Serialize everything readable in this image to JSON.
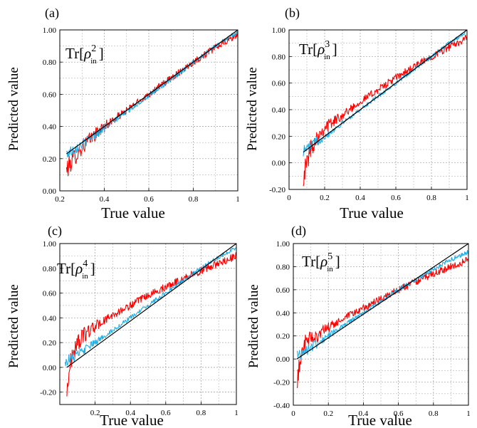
{
  "panels": [
    {
      "label": "(a)",
      "formula": {
        "prefix": "Tr",
        "rho": "ρ",
        "subscript": "in",
        "power": "2"
      },
      "chart_data": {
        "type": "line",
        "xlabel": "True value",
        "ylabel": "Predicted value",
        "xlim": [
          0.2,
          1.0
        ],
        "ylim": [
          0.0,
          1.0
        ],
        "xticks": [
          0.2,
          0.4,
          0.6,
          0.8,
          1.0
        ],
        "xtick_labels": [
          "0.2",
          "0.4",
          "0.6",
          "0.8",
          "1"
        ],
        "yticks": [
          0.0,
          0.2,
          0.4,
          0.6,
          0.8,
          1.0
        ],
        "ytick_labels": [
          "0.00",
          "0.20",
          "0.40",
          "0.60",
          "0.80",
          "1.00"
        ],
        "grid": true,
        "series": [
          {
            "color": "#ff0000",
            "x": [
              0.23,
              0.26,
              0.3,
              0.35,
              0.4,
              0.5,
              0.6,
              0.7,
              0.8,
              0.9,
              1.0
            ],
            "y": [
              0.13,
              0.2,
              0.27,
              0.34,
              0.4,
              0.5,
              0.6,
              0.7,
              0.8,
              0.89,
              0.97
            ],
            "noise": 0.022
          },
          {
            "color": "#22b0e6",
            "x": [
              0.23,
              0.3,
              0.4,
              0.5,
              0.6,
              0.7,
              0.8,
              0.9,
              1.0
            ],
            "y": [
              0.23,
              0.29,
              0.39,
              0.49,
              0.59,
              0.69,
              0.8,
              0.9,
              0.99
            ],
            "noise": 0.014
          },
          {
            "color": "#000000",
            "x": [
              0.23,
              1.0
            ],
            "y": [
              0.23,
              1.0
            ],
            "noise": 0
          }
        ]
      }
    },
    {
      "label": "(b)",
      "formula": {
        "prefix": "Tr",
        "rho": "ρ",
        "subscript": "in",
        "power": "3"
      },
      "chart_data": {
        "type": "line",
        "xlabel": "True value",
        "ylabel": "Predicted value",
        "xlim": [
          0.0,
          1.0
        ],
        "ylim": [
          -0.2,
          1.0
        ],
        "xticks": [
          0.0,
          0.2,
          0.4,
          0.6,
          0.8,
          1.0
        ],
        "xtick_labels": [
          "0",
          "0.2",
          "0.4",
          "0.6",
          "0.8",
          "1"
        ],
        "yticks": [
          -0.2,
          0.0,
          0.2,
          0.4,
          0.6,
          0.8,
          1.0
        ],
        "ytick_labels": [
          "-0.20",
          "0.00",
          "0.20",
          "0.40",
          "0.60",
          "0.80",
          "1.00"
        ],
        "grid": true,
        "series": [
          {
            "color": "#ff0000",
            "x": [
              0.08,
              0.1,
              0.12,
              0.15,
              0.2,
              0.25,
              0.3,
              0.4,
              0.5,
              0.6,
              0.7,
              0.8,
              0.9,
              1.0
            ],
            "y": [
              -0.1,
              0.0,
              0.1,
              0.18,
              0.27,
              0.31,
              0.36,
              0.46,
              0.55,
              0.64,
              0.72,
              0.8,
              0.87,
              0.94
            ],
            "noise": 0.028
          },
          {
            "color": "#22b0e6",
            "x": [
              0.08,
              0.2,
              0.3,
              0.4,
              0.5,
              0.6,
              0.7,
              0.8,
              0.9,
              1.0
            ],
            "y": [
              0.09,
              0.2,
              0.3,
              0.4,
              0.5,
              0.6,
              0.7,
              0.8,
              0.9,
              0.99
            ],
            "noise": 0.016
          },
          {
            "color": "#000000",
            "x": [
              0.08,
              1.0
            ],
            "y": [
              0.08,
              1.0
            ],
            "noise": 0
          }
        ]
      }
    },
    {
      "label": "(c)",
      "formula": {
        "prefix": "Tr",
        "rho": "ρ",
        "subscript": "in",
        "power": "4"
      },
      "chart_data": {
        "type": "line",
        "xlabel": "True value",
        "ylabel": "Predicted value",
        "xlim": [
          0.0,
          1.0
        ],
        "ylim": [
          -0.3,
          1.0
        ],
        "xticks": [
          0.2,
          0.4,
          0.6,
          0.8,
          1.0
        ],
        "xtick_labels": [
          "0.2",
          "0.4",
          "0.6",
          "0.8",
          "1"
        ],
        "yticks": [
          -0.2,
          0.0,
          0.2,
          0.4,
          0.6,
          0.8,
          1.0
        ],
        "ytick_labels": [
          "-0.20",
          "0.00",
          "0.20",
          "0.40",
          "0.60",
          "0.80",
          "1.00"
        ],
        "grid": true,
        "series": [
          {
            "color": "#ff0000",
            "x": [
              0.04,
              0.05,
              0.07,
              0.1,
              0.15,
              0.2,
              0.3,
              0.4,
              0.5,
              0.6,
              0.7,
              0.8,
              0.9,
              1.0
            ],
            "y": [
              -0.22,
              -0.05,
              0.1,
              0.2,
              0.28,
              0.33,
              0.42,
              0.5,
              0.58,
              0.65,
              0.72,
              0.78,
              0.84,
              0.9
            ],
            "noise": 0.03
          },
          {
            "color": "#22b0e6",
            "x": [
              0.03,
              0.1,
              0.2,
              0.3,
              0.4,
              0.5,
              0.6,
              0.7,
              0.8,
              0.9,
              1.0
            ],
            "y": [
              0.05,
              0.1,
              0.2,
              0.3,
              0.4,
              0.5,
              0.6,
              0.7,
              0.8,
              0.89,
              0.97
            ],
            "noise": 0.018
          },
          {
            "color": "#000000",
            "x": [
              0.04,
              1.0
            ],
            "y": [
              0.0,
              1.0
            ],
            "noise": 0
          }
        ]
      }
    },
    {
      "label": "(d)",
      "formula": {
        "prefix": "Tr",
        "rho": "ρ",
        "subscript": "in",
        "power": "5"
      },
      "chart_data": {
        "type": "line",
        "xlabel": "True value",
        "ylabel": "Predicted value",
        "xlim": [
          0.0,
          1.0
        ],
        "ylim": [
          -0.4,
          1.0
        ],
        "xticks": [
          0.0,
          0.2,
          0.4,
          0.6,
          0.8,
          1.0
        ],
        "xtick_labels": [
          "0",
          "0.2",
          "0.4",
          "0.6",
          "0.8",
          "1"
        ],
        "yticks": [
          -0.4,
          -0.2,
          0.0,
          0.2,
          0.4,
          0.6,
          0.8,
          1.0
        ],
        "ytick_labels": [
          "-0.40",
          "-0.20",
          "0.00",
          "0.20",
          "0.40",
          "0.60",
          "0.80",
          "1.00"
        ],
        "grid": true,
        "series": [
          {
            "color": "#ff0000",
            "x": [
              0.02,
              0.03,
              0.05,
              0.08,
              0.1,
              0.15,
              0.2,
              0.3,
              0.4,
              0.5,
              0.6,
              0.7,
              0.8,
              0.9,
              1.0
            ],
            "y": [
              -0.3,
              -0.1,
              0.1,
              0.15,
              0.18,
              0.22,
              0.27,
              0.36,
              0.44,
              0.52,
              0.6,
              0.67,
              0.74,
              0.8,
              0.86
            ],
            "noise": 0.032
          },
          {
            "color": "#22b0e6",
            "x": [
              0.02,
              0.1,
              0.2,
              0.3,
              0.4,
              0.5,
              0.6,
              0.7,
              0.8,
              0.9,
              1.0
            ],
            "y": [
              0.03,
              0.1,
              0.2,
              0.3,
              0.4,
              0.5,
              0.6,
              0.69,
              0.78,
              0.86,
              0.93
            ],
            "noise": 0.02
          },
          {
            "color": "#000000",
            "x": [
              0.02,
              1.0
            ],
            "y": [
              0.0,
              1.0
            ],
            "noise": 0
          }
        ]
      }
    }
  ]
}
